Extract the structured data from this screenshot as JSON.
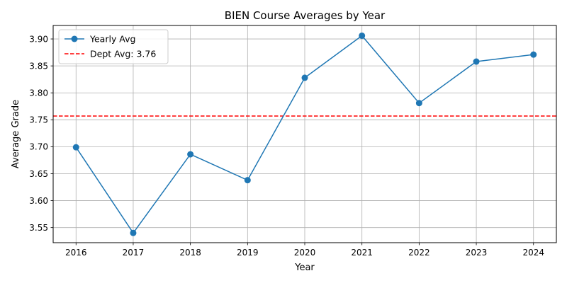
{
  "chart_data": {
    "type": "line",
    "title": "BIEN Course Averages by Year",
    "xlabel": "Year",
    "ylabel": "Average Grade",
    "x": [
      2016,
      2017,
      2018,
      2019,
      2020,
      2021,
      2022,
      2023,
      2024
    ],
    "series": [
      {
        "name": "Yearly Avg",
        "color": "#1f77b4",
        "marker": "circle",
        "values": [
          3.699,
          3.54,
          3.686,
          3.638,
          3.828,
          3.906,
          3.781,
          3.858,
          3.871
        ]
      }
    ],
    "reference_line": {
      "name": "Dept Avg: 3.76",
      "value": 3.757,
      "color": "#ff0000",
      "style": "dashed"
    },
    "xlim": [
      2015.6,
      2024.4
    ],
    "ylim": [
      3.522,
      3.925
    ],
    "yticks": [
      "3.55",
      "3.60",
      "3.65",
      "3.70",
      "3.75",
      "3.80",
      "3.85",
      "3.90"
    ],
    "xticks": [
      "2016",
      "2017",
      "2018",
      "2019",
      "2020",
      "2021",
      "2022",
      "2023",
      "2024"
    ],
    "grid": true,
    "legend_position": "top-left"
  }
}
